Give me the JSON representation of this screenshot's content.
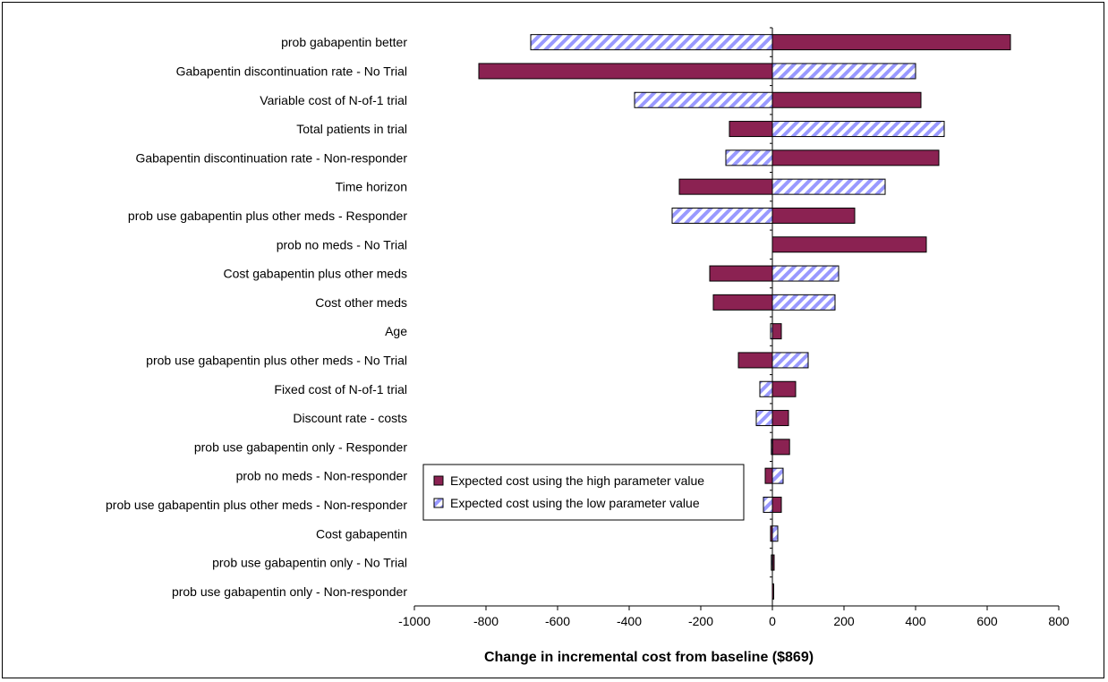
{
  "chart_data": {
    "type": "bar",
    "orientation": "horizontal",
    "categories": [
      "prob gabapentin better",
      "Gabapentin discontinuation rate - No Trial",
      "Variable cost of N-of-1 trial",
      "Total patients in trial",
      "Gabapentin discontinuation rate - Non-responder",
      "Time horizon",
      "prob use gabapentin plus other meds - Responder",
      "prob no meds - No Trial",
      "Cost gabapentin plus other meds",
      "Cost other meds",
      "Age",
      "prob use gabapentin plus other meds - No Trial",
      "Fixed cost of N-of-1 trial",
      "Discount rate - costs",
      "prob use gabapentin only - Responder",
      "prob no meds - Non-responder",
      "prob use gabapentin plus other meds - Non-responder",
      "Cost gabapentin",
      "prob use gabapentin only - No Trial",
      "prob use gabapentin only - Non-responder"
    ],
    "series": [
      {
        "name": "Expected cost using the high parameter value",
        "color": "#8B2252",
        "values": [
          665,
          -820,
          415,
          -120,
          465,
          -260,
          230,
          430,
          -175,
          -165,
          25,
          -95,
          65,
          45,
          48,
          -20,
          25,
          -5,
          5,
          3
        ]
      },
      {
        "name": "Expected cost using the low parameter value",
        "color": "#9999ff",
        "values": [
          -675,
          400,
          -385,
          480,
          -130,
          315,
          -280,
          0,
          185,
          175,
          -5,
          100,
          -35,
          -45,
          -3,
          30,
          -25,
          15,
          -3,
          0
        ]
      }
    ],
    "x_ticks": [
      "-1000",
      "-800",
      "-600",
      "-400",
      "-200",
      "0",
      "200",
      "400",
      "600",
      "800"
    ],
    "xlim": [
      -1000,
      800
    ],
    "xlabel": "Change in incremental cost from baseline ($869)",
    "ylabel": "",
    "title": "",
    "grid": false,
    "legend_position": "lower-left of plot area"
  }
}
